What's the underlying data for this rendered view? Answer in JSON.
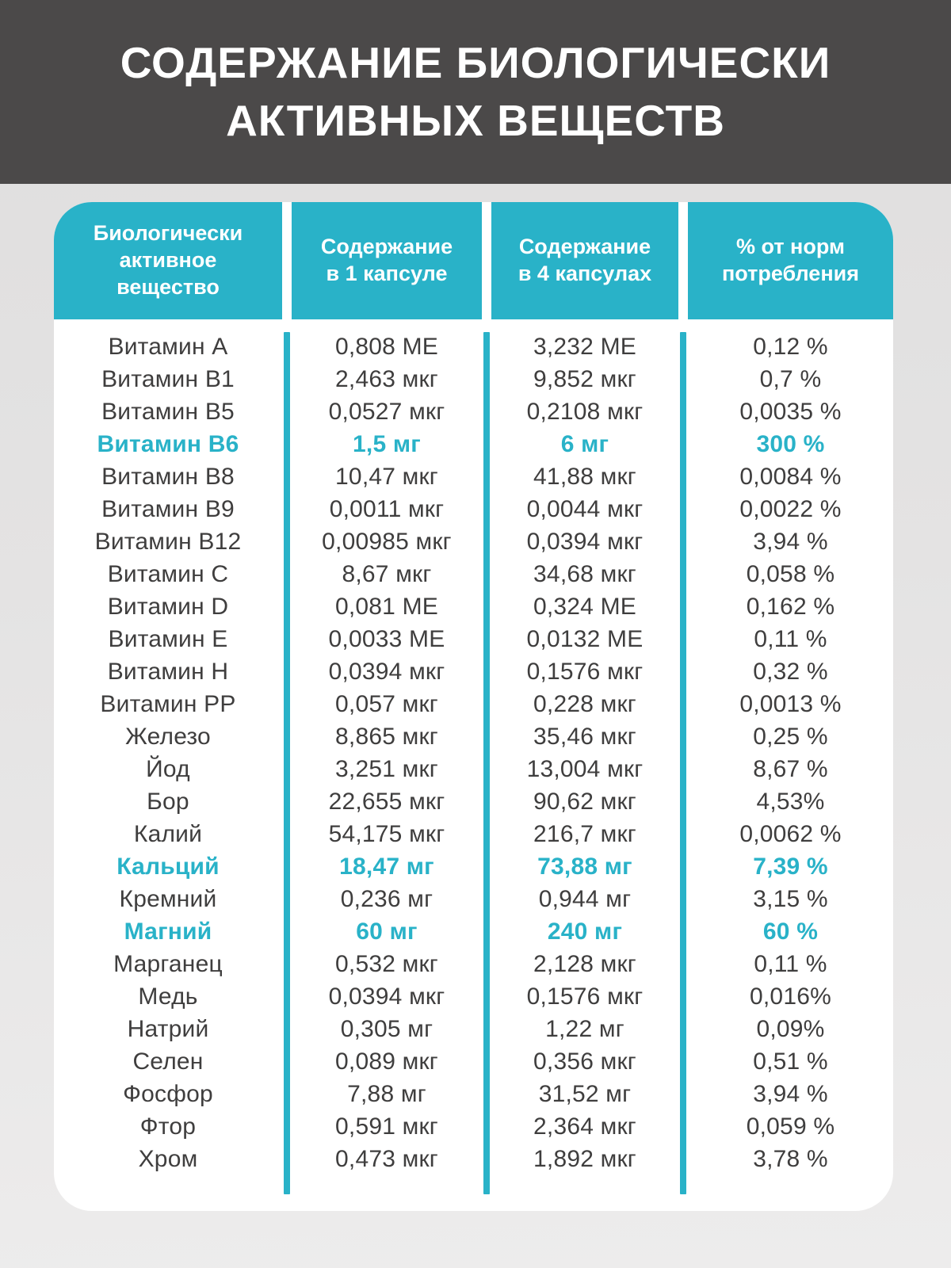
{
  "title": "СОДЕРЖАНИЕ БИОЛОГИЧЕСКИ\nАКТИВНЫХ ВЕЩЕСТВ",
  "colors": {
    "band_bg": "#4b4949",
    "accent_teal": "#29b2c8",
    "card_bg": "#ffffff",
    "body_text": "#3f3e3e",
    "page_bg": "#e4e3e3"
  },
  "table": {
    "columns": [
      {
        "label": "Биологически\nактивное\nвещество"
      },
      {
        "label": "Содержание\nв 1 капсуле"
      },
      {
        "label": "Содержание\nв 4 капсулах"
      },
      {
        "label": "% от норм\nпотребления"
      }
    ],
    "rows": [
      {
        "name": "Витамин A",
        "per_capsule": "0,808 МЕ",
        "per_4_capsules": "3,232 МЕ",
        "percent_norm": "0,12 %",
        "highlight": false
      },
      {
        "name": "Витамин B1",
        "per_capsule": "2,463 мкг",
        "per_4_capsules": "9,852 мкг",
        "percent_norm": "0,7 %",
        "highlight": false
      },
      {
        "name": "Витамин B5",
        "per_capsule": "0,0527 мкг",
        "per_4_capsules": "0,2108 мкг",
        "percent_norm": "0,0035 %",
        "highlight": false
      },
      {
        "name": "Витамин B6",
        "per_capsule": "1,5 мг",
        "per_4_capsules": "6 мг",
        "percent_norm": "300 %",
        "highlight": true
      },
      {
        "name": "Витамин B8",
        "per_capsule": "10,47 мкг",
        "per_4_capsules": "41,88 мкг",
        "percent_norm": "0,0084 %",
        "highlight": false
      },
      {
        "name": "Витамин B9",
        "per_capsule": "0,0011 мкг",
        "per_4_capsules": "0,0044 мкг",
        "percent_norm": "0,0022 %",
        "highlight": false
      },
      {
        "name": "Витамин B12",
        "per_capsule": "0,00985 мкг",
        "per_4_capsules": "0,0394 мкг",
        "percent_norm": "3,94 %",
        "highlight": false
      },
      {
        "name": "Витамин C",
        "per_capsule": "8,67 мкг",
        "per_4_capsules": "34,68 мкг",
        "percent_norm": "0,058 %",
        "highlight": false
      },
      {
        "name": "Витамин D",
        "per_capsule": "0,081 МЕ",
        "per_4_capsules": "0,324 МЕ",
        "percent_norm": "0,162 %",
        "highlight": false
      },
      {
        "name": "Витамин E",
        "per_capsule": "0,0033 МЕ",
        "per_4_capsules": "0,0132 МЕ",
        "percent_norm": "0,11 %",
        "highlight": false
      },
      {
        "name": "Витамин H",
        "per_capsule": "0,0394 мкг",
        "per_4_capsules": "0,1576 мкг",
        "percent_norm": "0,32 %",
        "highlight": false
      },
      {
        "name": "Витамин PP",
        "per_capsule": "0,057 мкг",
        "per_4_capsules": "0,228 мкг",
        "percent_norm": "0,0013 %",
        "highlight": false
      },
      {
        "name": "Железо",
        "per_capsule": "8,865 мкг",
        "per_4_capsules": "35,46 мкг",
        "percent_norm": "0,25 %",
        "highlight": false
      },
      {
        "name": "Йод",
        "per_capsule": "3,251 мкг",
        "per_4_capsules": "13,004 мкг",
        "percent_norm": "8,67 %",
        "highlight": false
      },
      {
        "name": "Бор",
        "per_capsule": "22,655 мкг",
        "per_4_capsules": "90,62 мкг",
        "percent_norm": "4,53%",
        "highlight": false
      },
      {
        "name": "Калий",
        "per_capsule": "54,175 мкг",
        "per_4_capsules": "216,7 мкг",
        "percent_norm": "0,0062 %",
        "highlight": false
      },
      {
        "name": "Кальций",
        "per_capsule": "18,47 мг",
        "per_4_capsules": "73,88 мг",
        "percent_norm": "7,39 %",
        "highlight": true
      },
      {
        "name": "Кремний",
        "per_capsule": "0,236 мг",
        "per_4_capsules": "0,944 мг",
        "percent_norm": "3,15 %",
        "highlight": false
      },
      {
        "name": "Магний",
        "per_capsule": "60 мг",
        "per_4_capsules": "240 мг",
        "percent_norm": "60 %",
        "highlight": true
      },
      {
        "name": "Марганец",
        "per_capsule": "0,532 мкг",
        "per_4_capsules": "2,128 мкг",
        "percent_norm": "0,11 %",
        "highlight": false
      },
      {
        "name": "Медь",
        "per_capsule": "0,0394 мкг",
        "per_4_capsules": "0,1576 мкг",
        "percent_norm": "0,016%",
        "highlight": false
      },
      {
        "name": "Натрий",
        "per_capsule": "0,305 мг",
        "per_4_capsules": "1,22 мг",
        "percent_norm": "0,09%",
        "highlight": false
      },
      {
        "name": "Селен",
        "per_capsule": "0,089 мкг",
        "per_4_capsules": "0,356 мкг",
        "percent_norm": "0,51 %",
        "highlight": false
      },
      {
        "name": "Фосфор",
        "per_capsule": "7,88 мг",
        "per_4_capsules": "31,52 мг",
        "percent_norm": "3,94 %",
        "highlight": false
      },
      {
        "name": "Фтор",
        "per_capsule": "0,591 мкг",
        "per_4_capsules": "2,364 мкг",
        "percent_norm": "0,059 %",
        "highlight": false
      },
      {
        "name": "Хром",
        "per_capsule": "0,473 мкг",
        "per_4_capsules": "1,892 мкг",
        "percent_norm": "3,78 %",
        "highlight": false
      }
    ]
  }
}
